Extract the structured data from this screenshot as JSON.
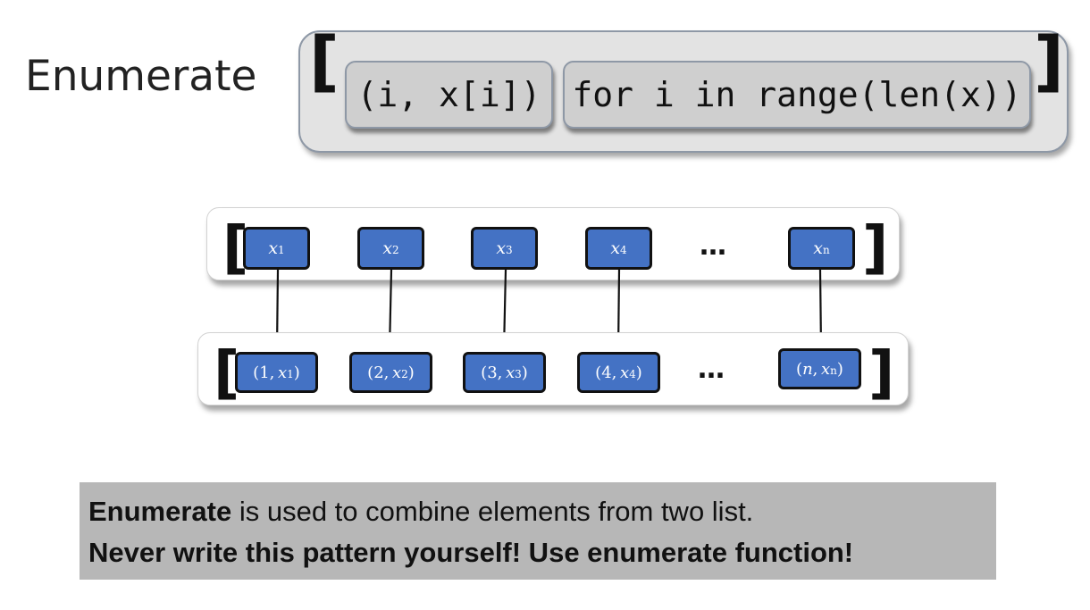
{
  "title": "Enumerate",
  "code": {
    "open_bracket": "[",
    "close_bracket": "]",
    "expression": "(i, x[i])",
    "comprehension": "for i in range(len(x))"
  },
  "input_row": {
    "open_bracket": "[",
    "close_bracket": "]",
    "items": [
      {
        "var": "x",
        "sub": "1"
      },
      {
        "var": "x",
        "sub": "2"
      },
      {
        "var": "x",
        "sub": "3"
      },
      {
        "var": "x",
        "sub": "4"
      },
      {
        "var": "x",
        "sub": "n"
      }
    ],
    "ellipsis": "…"
  },
  "output_row": {
    "open_bracket": "[",
    "close_bracket": "]",
    "items": [
      {
        "index": "1",
        "sep": ",",
        "var": "x",
        "sub": "1"
      },
      {
        "index": "2",
        "sep": " ,",
        "var": "x",
        "sub": "2"
      },
      {
        "index": "3",
        "sep": ",",
        "var": "x",
        "sub": "3"
      },
      {
        "index": "4",
        "sep": ",",
        "var": "x",
        "sub": "4"
      },
      {
        "index": "n",
        "sep": ",",
        "var": "x",
        "sub": "n"
      }
    ],
    "ellipsis": "…"
  },
  "note": {
    "line1_bold": "Enumerate",
    "line1_rest": " is used to combine elements from two list.",
    "line2": "Never write this pattern yourself! Use enumerate function!"
  }
}
